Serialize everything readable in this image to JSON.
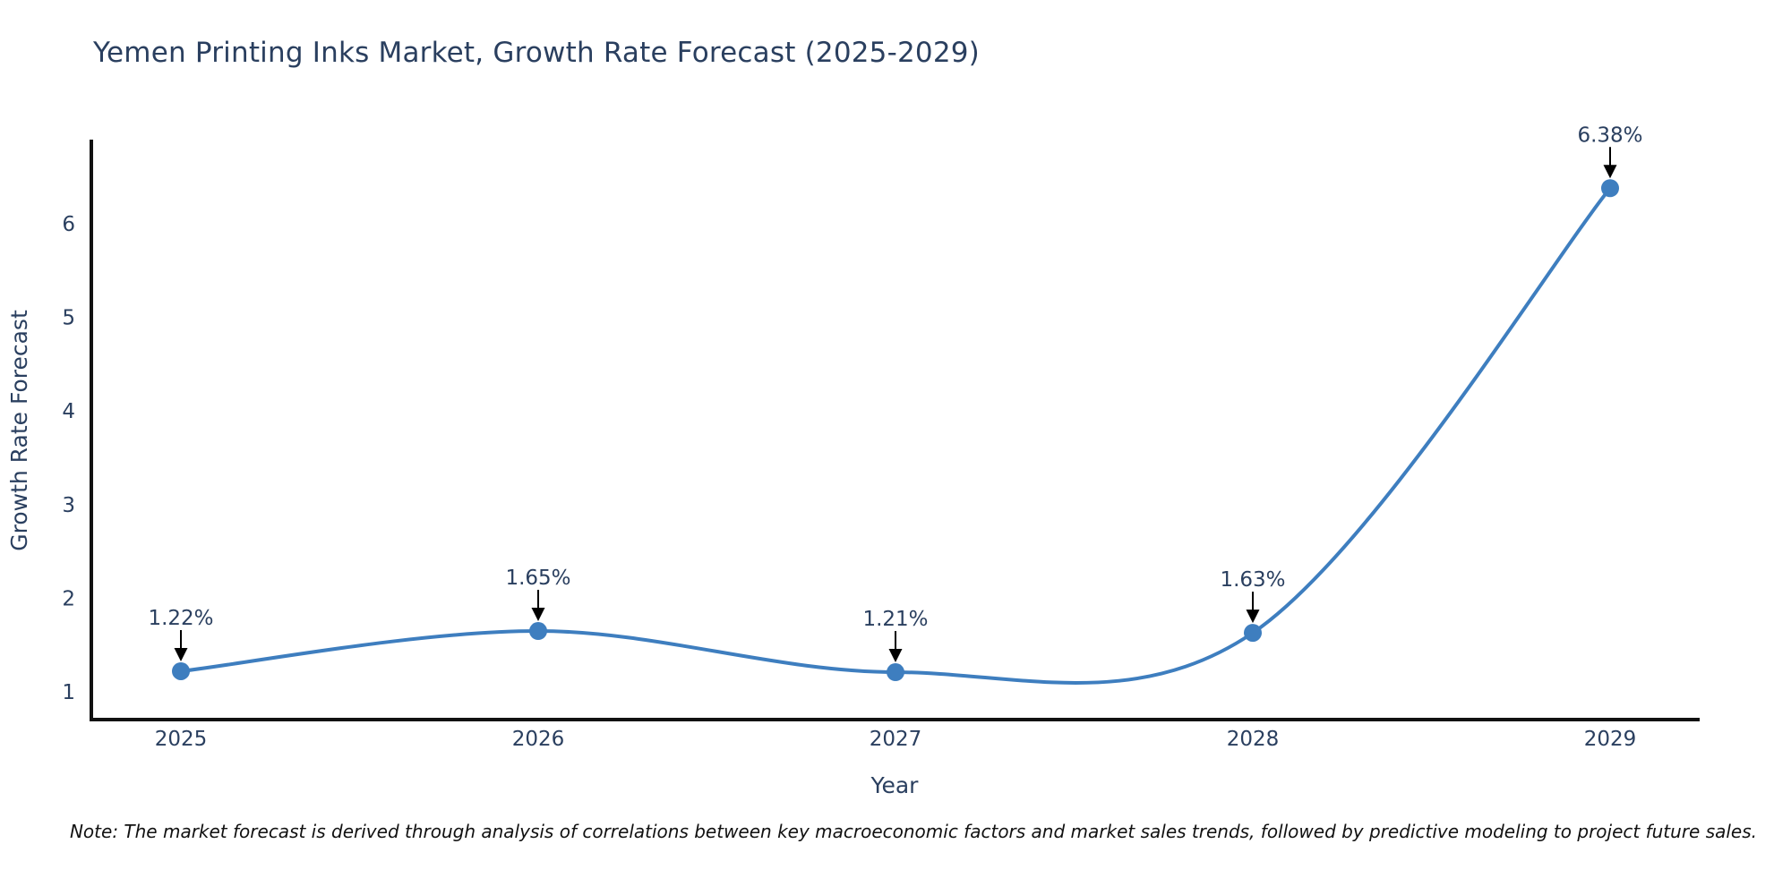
{
  "title": "Yemen Printing Inks Market, Growth Rate Forecast (2025-2029)",
  "note": "Note: The market forecast is derived through analysis of correlations between key macroeconomic factors and market sales trends, followed by predictive modeling to project future sales.",
  "chart_data": {
    "type": "line",
    "title": "Yemen Printing Inks Market, Growth Rate Forecast (2025-2029)",
    "xlabel": "Year",
    "ylabel": "Growth Rate Forecast",
    "categories": [
      2025,
      2026,
      2027,
      2028,
      2029
    ],
    "values": [
      1.22,
      1.65,
      1.21,
      1.63,
      6.38
    ],
    "point_labels": [
      "1.22%",
      "1.65%",
      "1.21%",
      "1.63%",
      "6.38%"
    ],
    "yticks": [
      1,
      2,
      3,
      4,
      5,
      6
    ],
    "ylim": [
      0.7,
      6.9
    ],
    "line_shape": "spline",
    "grid": false,
    "legend": "none",
    "colors": {
      "line": "#3e7ebf",
      "marker": "#3e7ebf",
      "axis": "#111111",
      "tick_text": "#2a3f5f",
      "annotation_text": "#2a3f5f",
      "arrow": "#000000",
      "title_text": "#2a3f5f",
      "note_text": "#111111",
      "background": "#ffffff"
    }
  }
}
